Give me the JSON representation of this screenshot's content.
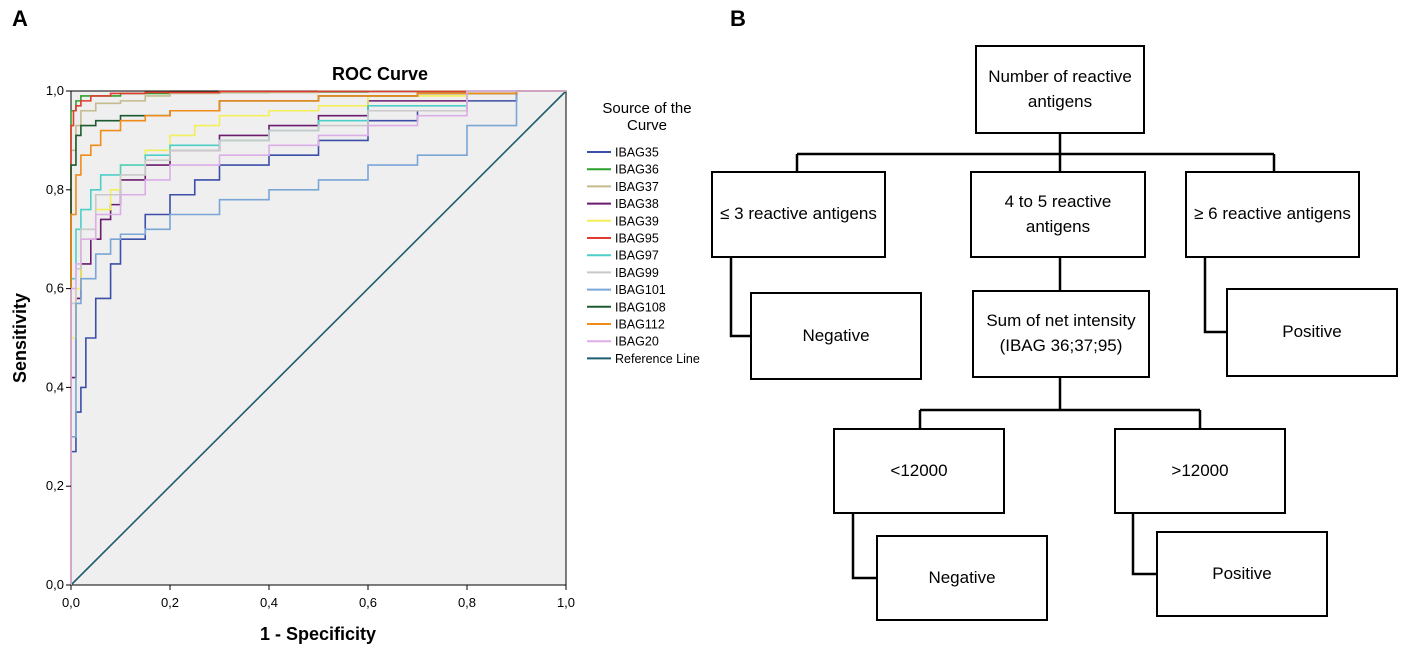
{
  "panel_a": {
    "letter": "A",
    "legend_title": "Source of the Curve"
  },
  "panel_b": {
    "letter": "B",
    "root": "Number of reactive antigens",
    "branch_left": "≤ 3 reactive antigens",
    "branch_mid": "4 to 5 reactive antigens",
    "branch_right": "≥ 6 reactive antigens",
    "leaf_left": "Negative",
    "mid_child": "Sum of net intensity (IBAG 36;37;95)",
    "leaf_right": "Positive",
    "sub_left": "<12000",
    "sub_right": ">12000",
    "sub_left_leaf": "Negative",
    "sub_right_leaf": "Positive"
  },
  "chart_data": {
    "type": "line",
    "title": "ROC Curve",
    "xlabel": "1 - Specificity",
    "ylabel": "Sensitivity",
    "xlim": [
      0,
      1
    ],
    "ylim": [
      0,
      1
    ],
    "xticks": [
      "0,0",
      "0,2",
      "0,4",
      "0,6",
      "0,8",
      "1,0"
    ],
    "yticks": [
      "0,0",
      "0,2",
      "0,4",
      "0,6",
      "0,8",
      "1,0"
    ],
    "legend_position": "right",
    "series": [
      {
        "name": "IBAG35",
        "color": "#3b4fa8",
        "x": [
          0,
          0.01,
          0.02,
          0.03,
          0.05,
          0.08,
          0.1,
          0.15,
          0.2,
          0.25,
          0.3,
          0.4,
          0.5,
          0.6,
          0.7,
          0.8,
          0.9,
          1.0
        ],
        "y": [
          0,
          0.27,
          0.35,
          0.4,
          0.5,
          0.58,
          0.65,
          0.7,
          0.75,
          0.79,
          0.82,
          0.85,
          0.87,
          0.9,
          0.94,
          0.96,
          0.98,
          1.0
        ]
      },
      {
        "name": "IBAG36",
        "color": "#2ca02c",
        "x": [
          0,
          0.01,
          0.02,
          0.05,
          0.1,
          0.2,
          0.4,
          0.6,
          0.8,
          1.0
        ],
        "y": [
          0,
          0.96,
          0.98,
          0.99,
          0.99,
          0.995,
          0.997,
          0.998,
          0.999,
          1.0
        ]
      },
      {
        "name": "IBAG37",
        "color": "#c4bb8f",
        "x": [
          0,
          0.01,
          0.02,
          0.05,
          0.1,
          0.15,
          0.2,
          0.3,
          0.5,
          0.7,
          1.0
        ],
        "y": [
          0,
          0.88,
          0.93,
          0.96,
          0.975,
          0.98,
          0.99,
          0.995,
          0.997,
          0.999,
          1.0
        ]
      },
      {
        "name": "IBAG38",
        "color": "#6a1b6e",
        "x": [
          0,
          0.01,
          0.02,
          0.04,
          0.06,
          0.08,
          0.1,
          0.15,
          0.2,
          0.3,
          0.4,
          0.5,
          0.6,
          0.8,
          1.0
        ],
        "y": [
          0,
          0.42,
          0.58,
          0.65,
          0.7,
          0.74,
          0.77,
          0.82,
          0.85,
          0.88,
          0.91,
          0.93,
          0.95,
          0.98,
          1.0
        ]
      },
      {
        "name": "IBAG39",
        "color": "#f2ef5a",
        "x": [
          0,
          0.01,
          0.02,
          0.05,
          0.08,
          0.1,
          0.15,
          0.2,
          0.25,
          0.3,
          0.4,
          0.5,
          0.6,
          0.8,
          1.0
        ],
        "y": [
          0,
          0.5,
          0.6,
          0.7,
          0.76,
          0.8,
          0.85,
          0.88,
          0.91,
          0.93,
          0.95,
          0.96,
          0.97,
          0.99,
          1.0
        ]
      },
      {
        "name": "IBAG95",
        "color": "#e03b2f",
        "x": [
          0,
          0.005,
          0.01,
          0.02,
          0.04,
          0.08,
          0.15,
          0.3,
          0.5,
          0.8,
          1.0
        ],
        "y": [
          0,
          0.93,
          0.96,
          0.97,
          0.98,
          0.99,
          0.995,
          0.997,
          0.999,
          0.999,
          1.0
        ]
      },
      {
        "name": "IBAG97",
        "color": "#4ccfc7",
        "x": [
          0,
          0.01,
          0.02,
          0.04,
          0.06,
          0.1,
          0.15,
          0.2,
          0.3,
          0.4,
          0.5,
          0.6,
          0.8,
          1.0
        ],
        "y": [
          0,
          0.62,
          0.72,
          0.76,
          0.8,
          0.83,
          0.85,
          0.87,
          0.89,
          0.9,
          0.92,
          0.94,
          0.97,
          1.0
        ]
      },
      {
        "name": "IBAG99",
        "color": "#c9c9c9",
        "x": [
          0,
          0.01,
          0.02,
          0.05,
          0.1,
          0.15,
          0.2,
          0.3,
          0.4,
          0.5,
          0.6,
          0.8,
          1.0
        ],
        "y": [
          0,
          0.57,
          0.64,
          0.72,
          0.79,
          0.83,
          0.86,
          0.88,
          0.9,
          0.92,
          0.93,
          0.96,
          1.0
        ]
      },
      {
        "name": "IBAG101",
        "color": "#7aa6d6",
        "x": [
          0,
          0.01,
          0.02,
          0.05,
          0.08,
          0.1,
          0.15,
          0.2,
          0.3,
          0.4,
          0.5,
          0.6,
          0.7,
          0.8,
          0.9,
          1.0
        ],
        "y": [
          0,
          0.3,
          0.57,
          0.62,
          0.67,
          0.7,
          0.71,
          0.72,
          0.75,
          0.78,
          0.8,
          0.82,
          0.85,
          0.87,
          0.93,
          1.0
        ]
      },
      {
        "name": "IBAG108",
        "color": "#1e5a2f",
        "x": [
          0,
          0.01,
          0.02,
          0.05,
          0.1,
          0.2,
          0.3,
          0.5,
          0.7,
          0.9,
          1.0
        ],
        "y": [
          0,
          0.85,
          0.91,
          0.93,
          0.94,
          0.95,
          0.96,
          0.98,
          0.99,
          0.995,
          1.0
        ]
      },
      {
        "name": "IBAG112",
        "color": "#f08c1a",
        "x": [
          0,
          0.01,
          0.02,
          0.04,
          0.06,
          0.1,
          0.15,
          0.2,
          0.3,
          0.5,
          0.7,
          0.9,
          1.0
        ],
        "y": [
          0,
          0.75,
          0.83,
          0.87,
          0.89,
          0.92,
          0.94,
          0.95,
          0.96,
          0.98,
          0.99,
          0.995,
          1.0
        ]
      },
      {
        "name": "IBAG20",
        "color": "#dcaee8",
        "x": [
          0,
          0.01,
          0.02,
          0.05,
          0.1,
          0.15,
          0.2,
          0.3,
          0.4,
          0.5,
          0.6,
          0.7,
          0.8,
          1.0
        ],
        "y": [
          0,
          0.6,
          0.65,
          0.7,
          0.75,
          0.79,
          0.82,
          0.85,
          0.87,
          0.89,
          0.91,
          0.93,
          0.95,
          1.0
        ]
      },
      {
        "name": "Reference Line",
        "color": "#1f5c6e",
        "x": [
          0,
          1
        ],
        "y": [
          0,
          1
        ]
      }
    ]
  }
}
